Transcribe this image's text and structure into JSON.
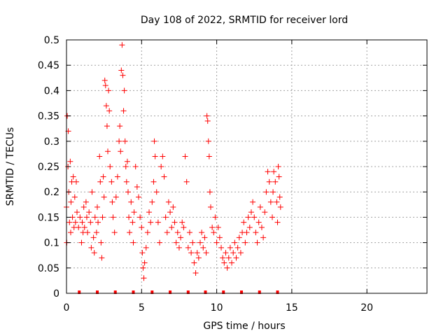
{
  "chart_data": {
    "type": "scatter",
    "title": "Day 108 of 2022, SRMTID for receiver lord",
    "xlabel": "GPS time / hours",
    "ylabel": "SRMTID / TECUs",
    "xlim": [
      0,
      24
    ],
    "ylim": [
      0,
      0.5
    ],
    "xticks": [
      0,
      5,
      10,
      15,
      20
    ],
    "yticks": [
      0,
      0.05,
      0.1,
      0.15,
      0.2,
      0.25,
      0.3,
      0.35,
      0.4,
      0.45,
      0.5
    ],
    "xtick_labels": [
      "0",
      "5",
      "10",
      "15",
      "20"
    ],
    "ytick_labels": [
      "0",
      "0.05",
      "0.1",
      "0.15",
      "0.2",
      "0.25",
      "0.3",
      "0.35",
      "0.4",
      "0.45",
      "0.5"
    ],
    "grid": true,
    "marker": "plus",
    "color": "#ff0000",
    "baseline_marker_times": [
      0.85,
      2.05,
      3.25,
      4.45,
      5.7,
      6.9,
      8.1,
      9.25,
      10.45,
      11.65,
      12.85,
      14.05
    ],
    "points": [
      [
        0.0,
        0.17
      ],
      [
        0.02,
        0.1
      ],
      [
        0.05,
        0.35
      ],
      [
        0.1,
        0.25
      ],
      [
        0.12,
        0.32
      ],
      [
        0.15,
        0.2
      ],
      [
        0.2,
        0.14
      ],
      [
        0.25,
        0.26
      ],
      [
        0.28,
        0.12
      ],
      [
        0.3,
        0.18
      ],
      [
        0.35,
        0.22
      ],
      [
        0.4,
        0.15
      ],
      [
        0.45,
        0.23
      ],
      [
        0.5,
        0.13
      ],
      [
        0.55,
        0.19
      ],
      [
        0.6,
        0.14
      ],
      [
        0.65,
        0.22
      ],
      [
        0.7,
        0.16
      ],
      [
        0.8,
        0.13
      ],
      [
        0.9,
        0.15
      ],
      [
        1.0,
        0.1
      ],
      [
        1.05,
        0.14
      ],
      [
        1.1,
        0.12
      ],
      [
        1.15,
        0.17
      ],
      [
        1.2,
        0.13
      ],
      [
        1.3,
        0.18
      ],
      [
        1.35,
        0.15
      ],
      [
        1.4,
        0.12
      ],
      [
        1.5,
        0.16
      ],
      [
        1.6,
        0.14
      ],
      [
        1.65,
        0.09
      ],
      [
        1.7,
        0.2
      ],
      [
        1.8,
        0.11
      ],
      [
        1.85,
        0.08
      ],
      [
        1.9,
        0.15
      ],
      [
        2.0,
        0.12
      ],
      [
        2.05,
        0.17
      ],
      [
        2.1,
        0.14
      ],
      [
        2.2,
        0.27
      ],
      [
        2.25,
        0.22
      ],
      [
        2.3,
        0.1
      ],
      [
        2.35,
        0.07
      ],
      [
        2.4,
        0.15
      ],
      [
        2.45,
        0.23
      ],
      [
        2.5,
        0.19
      ],
      [
        2.55,
        0.42
      ],
      [
        2.6,
        0.41
      ],
      [
        2.65,
        0.37
      ],
      [
        2.7,
        0.33
      ],
      [
        2.75,
        0.28
      ],
      [
        2.8,
        0.4
      ],
      [
        2.85,
        0.36
      ],
      [
        2.9,
        0.25
      ],
      [
        3.0,
        0.22
      ],
      [
        3.05,
        0.18
      ],
      [
        3.1,
        0.15
      ],
      [
        3.2,
        0.12
      ],
      [
        3.3,
        0.19
      ],
      [
        3.4,
        0.23
      ],
      [
        3.5,
        0.3
      ],
      [
        3.55,
        0.33
      ],
      [
        3.6,
        0.28
      ],
      [
        3.65,
        0.44
      ],
      [
        3.7,
        0.49
      ],
      [
        3.75,
        0.43
      ],
      [
        3.8,
        0.36
      ],
      [
        3.85,
        0.4
      ],
      [
        3.9,
        0.3
      ],
      [
        3.95,
        0.25
      ],
      [
        4.0,
        0.22
      ],
      [
        4.05,
        0.26
      ],
      [
        4.1,
        0.2
      ],
      [
        4.15,
        0.15
      ],
      [
        4.2,
        0.12
      ],
      [
        4.3,
        0.18
      ],
      [
        4.4,
        0.14
      ],
      [
        4.45,
        0.1
      ],
      [
        4.5,
        0.16
      ],
      [
        4.6,
        0.25
      ],
      [
        4.7,
        0.21
      ],
      [
        4.8,
        0.19
      ],
      [
        4.9,
        0.15
      ],
      [
        5.0,
        0.13
      ],
      [
        5.05,
        0.08
      ],
      [
        5.1,
        0.05
      ],
      [
        5.15,
        0.03
      ],
      [
        5.2,
        0.06
      ],
      [
        5.3,
        0.09
      ],
      [
        5.4,
        0.12
      ],
      [
        5.5,
        0.16
      ],
      [
        5.6,
        0.14
      ],
      [
        5.7,
        0.18
      ],
      [
        5.8,
        0.22
      ],
      [
        5.85,
        0.3
      ],
      [
        5.9,
        0.27
      ],
      [
        6.0,
        0.2
      ],
      [
        6.1,
        0.14
      ],
      [
        6.2,
        0.1
      ],
      [
        6.3,
        0.25
      ],
      [
        6.4,
        0.27
      ],
      [
        6.5,
        0.23
      ],
      [
        6.6,
        0.15
      ],
      [
        6.7,
        0.12
      ],
      [
        6.8,
        0.18
      ],
      [
        6.9,
        0.16
      ],
      [
        7.0,
        0.13
      ],
      [
        7.1,
        0.17
      ],
      [
        7.2,
        0.14
      ],
      [
        7.3,
        0.1
      ],
      [
        7.4,
        0.12
      ],
      [
        7.5,
        0.09
      ],
      [
        7.6,
        0.11
      ],
      [
        7.7,
        0.14
      ],
      [
        7.8,
        0.13
      ],
      [
        7.9,
        0.27
      ],
      [
        8.0,
        0.22
      ],
      [
        8.1,
        0.09
      ],
      [
        8.2,
        0.12
      ],
      [
        8.3,
        0.08
      ],
      [
        8.4,
        0.1
      ],
      [
        8.5,
        0.06
      ],
      [
        8.6,
        0.04
      ],
      [
        8.7,
        0.08
      ],
      [
        8.8,
        0.07
      ],
      [
        8.9,
        0.1
      ],
      [
        9.0,
        0.12
      ],
      [
        9.1,
        0.09
      ],
      [
        9.2,
        0.11
      ],
      [
        9.3,
        0.08
      ],
      [
        9.35,
        0.35
      ],
      [
        9.4,
        0.34
      ],
      [
        9.45,
        0.3
      ],
      [
        9.5,
        0.27
      ],
      [
        9.55,
        0.2
      ],
      [
        9.6,
        0.17
      ],
      [
        9.7,
        0.13
      ],
      [
        9.8,
        0.12
      ],
      [
        9.9,
        0.15
      ],
      [
        10.0,
        0.1
      ],
      [
        10.1,
        0.13
      ],
      [
        10.2,
        0.11
      ],
      [
        10.3,
        0.09
      ],
      [
        10.4,
        0.07
      ],
      [
        10.5,
        0.06
      ],
      [
        10.6,
        0.08
      ],
      [
        10.7,
        0.05
      ],
      [
        10.8,
        0.07
      ],
      [
        10.9,
        0.09
      ],
      [
        11.0,
        0.06
      ],
      [
        11.1,
        0.08
      ],
      [
        11.2,
        0.1
      ],
      [
        11.3,
        0.07
      ],
      [
        11.4,
        0.09
      ],
      [
        11.5,
        0.11
      ],
      [
        11.6,
        0.08
      ],
      [
        11.7,
        0.12
      ],
      [
        11.8,
        0.14
      ],
      [
        11.9,
        0.1
      ],
      [
        12.0,
        0.12
      ],
      [
        12.1,
        0.15
      ],
      [
        12.2,
        0.13
      ],
      [
        12.3,
        0.16
      ],
      [
        12.4,
        0.18
      ],
      [
        12.5,
        0.15
      ],
      [
        12.6,
        0.12
      ],
      [
        12.7,
        0.1
      ],
      [
        12.8,
        0.14
      ],
      [
        12.9,
        0.17
      ],
      [
        13.0,
        0.13
      ],
      [
        13.1,
        0.11
      ],
      [
        13.2,
        0.16
      ],
      [
        13.3,
        0.2
      ],
      [
        13.4,
        0.24
      ],
      [
        13.5,
        0.22
      ],
      [
        13.6,
        0.18
      ],
      [
        13.7,
        0.15
      ],
      [
        13.75,
        0.2
      ],
      [
        13.8,
        0.24
      ],
      [
        13.9,
        0.22
      ],
      [
        14.0,
        0.18
      ],
      [
        14.05,
        0.14
      ],
      [
        14.1,
        0.25
      ],
      [
        14.15,
        0.23
      ],
      [
        14.2,
        0.19
      ],
      [
        14.25,
        0.17
      ]
    ]
  }
}
